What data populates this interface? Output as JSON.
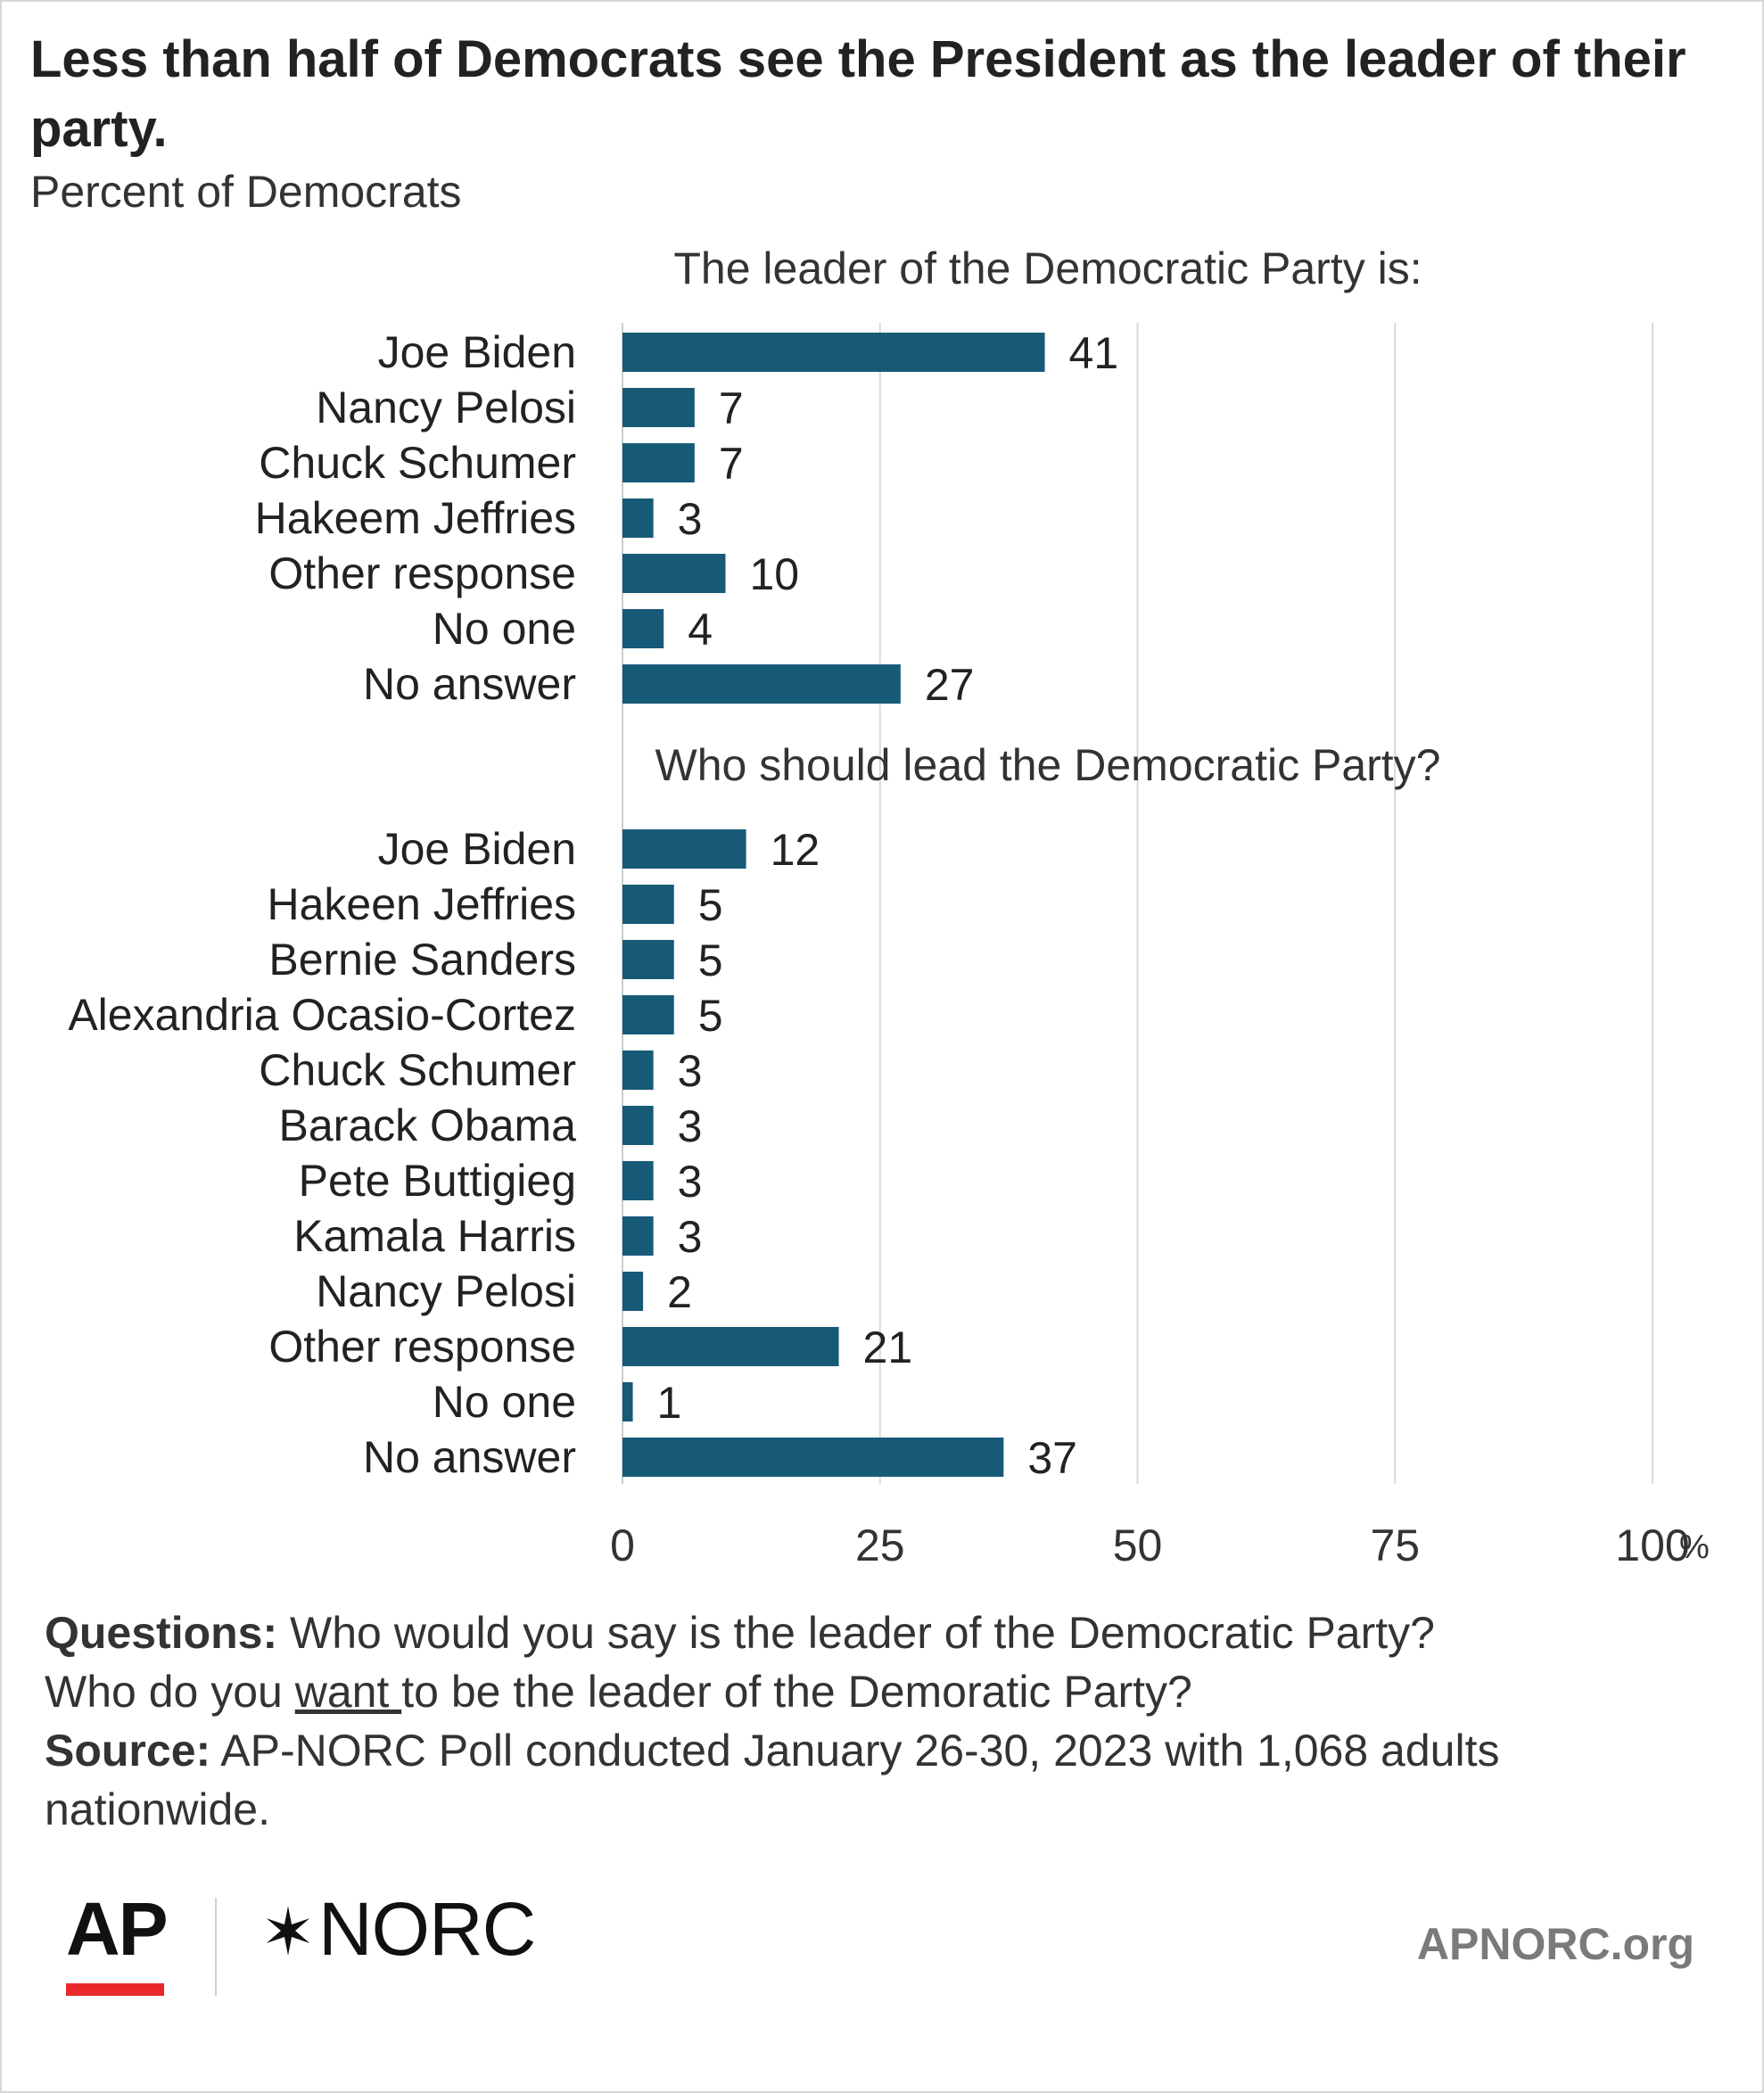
{
  "title": "Less than half of Democrats see the President as the leader of their party.",
  "subtitle": "Percent of Democrats",
  "colors": {
    "bar": "#175a78",
    "grid": "#d9d9d9",
    "text": "#222222",
    "ap_red": "#e8282a",
    "site_gray": "#7a7a7a"
  },
  "chart_data": {
    "type": "bar",
    "orientation": "horizontal",
    "xlim": [
      0,
      100
    ],
    "x_ticks": [
      "0",
      "25",
      "50",
      "75",
      "100"
    ],
    "x_unit": "%",
    "grid": true,
    "panels": [
      {
        "heading": "The leader of the Democratic Party is:",
        "categories": [
          "Joe Biden",
          "Nancy Pelosi",
          "Chuck Schumer",
          "Hakeem Jeffries",
          "Other response",
          "No one",
          "No answer"
        ],
        "values": [
          41,
          7,
          7,
          3,
          10,
          4,
          27
        ]
      },
      {
        "heading": "Who should lead the Democratic Party?",
        "categories": [
          "Joe Biden",
          "Hakeen Jeffries",
          "Bernie Sanders",
          "Alexandria Ocasio-Cortez",
          "Chuck Schumer",
          "Barack Obama",
          "Pete Buttigieg",
          "Kamala Harris",
          "Nancy Pelosi",
          "Other response",
          "No one",
          "No answer"
        ],
        "values": [
          12,
          5,
          5,
          5,
          3,
          3,
          3,
          3,
          2,
          21,
          1,
          37
        ]
      }
    ]
  },
  "notes": {
    "questions_label": "Questions:",
    "questions_line1": " Who would you say is the leader of the Democratic Party?",
    "questions_line2_pre": "Who do you ",
    "questions_line2_emph": "want ",
    "questions_line2_post": "to be the leader of the Demoratic Party?",
    "source_label": "Source:",
    "source_text": " AP-NORC Poll conducted January 26-30, 2023 with 1,068 adults nationwide."
  },
  "footer": {
    "ap_logo_text": "AP",
    "norc_logo_text": "NORC",
    "site": "APNORC.org"
  }
}
